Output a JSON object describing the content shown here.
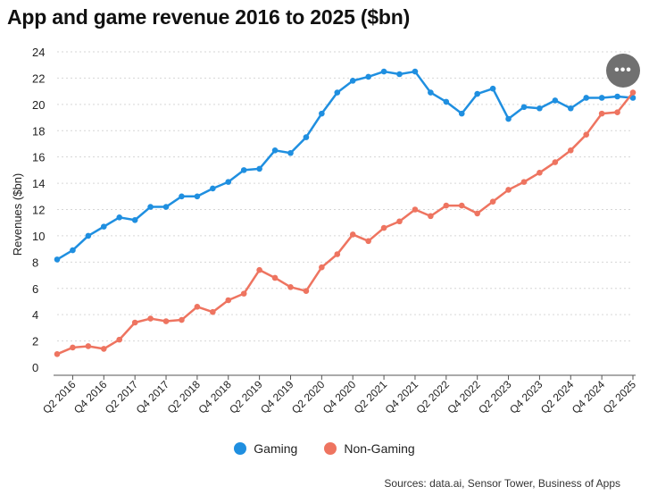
{
  "chart_data": {
    "type": "line",
    "title": "App and game revenue 2016 to 2025 ($bn)",
    "xlabel": "",
    "ylabel": "Revenues ($bn)",
    "ylim": [
      0,
      24
    ],
    "y_ticks": [
      0,
      2,
      4,
      6,
      8,
      10,
      12,
      14,
      16,
      18,
      20,
      22,
      24
    ],
    "grid": true,
    "legend_position": "bottom-center",
    "tick_labels": [
      "Q2 2016",
      "Q4 2016",
      "Q2 2017",
      "Q4 2017",
      "Q2 2018",
      "Q4 2018",
      "Q2 2019",
      "Q4 2019",
      "Q2 2020",
      "Q4 2020",
      "Q2 2021",
      "Q4 2021",
      "Q2 2022",
      "Q4 2022",
      "Q2 2023",
      "Q4 2023",
      "Q2 2024",
      "Q4 2024",
      "Q2 2025"
    ],
    "categories": [
      "Q1 2016",
      "Q2 2016",
      "Q3 2016",
      "Q4 2016",
      "Q1 2017",
      "Q2 2017",
      "Q3 2017",
      "Q4 2017",
      "Q1 2018",
      "Q2 2018",
      "Q3 2018",
      "Q4 2018",
      "Q1 2019",
      "Q2 2019",
      "Q3 2019",
      "Q4 2019",
      "Q1 2020",
      "Q2 2020",
      "Q3 2020",
      "Q4 2020",
      "Q1 2021",
      "Q2 2021",
      "Q3 2021",
      "Q4 2021",
      "Q1 2022",
      "Q2 2022",
      "Q3 2022",
      "Q4 2022",
      "Q1 2023",
      "Q2 2023",
      "Q3 2023",
      "Q4 2023",
      "Q1 2024",
      "Q2 2024",
      "Q3 2024",
      "Q4 2024",
      "Q1 2025",
      "Q2 2025"
    ],
    "series": [
      {
        "name": "Gaming",
        "color": "#1f8fe0",
        "values": [
          8.2,
          8.9,
          10.0,
          10.7,
          11.4,
          11.2,
          12.2,
          12.2,
          13.0,
          13.0,
          13.6,
          14.1,
          15.0,
          15.1,
          16.5,
          16.3,
          17.5,
          19.3,
          20.9,
          21.8,
          22.1,
          22.5,
          22.3,
          22.5,
          20.9,
          20.2,
          19.3,
          20.8,
          21.2,
          18.9,
          19.8,
          19.7,
          20.3,
          19.7,
          20.5,
          20.5,
          20.6,
          20.5
        ]
      },
      {
        "name": "Non-Gaming",
        "color": "#ee7460",
        "values": [
          1.0,
          1.5,
          1.6,
          1.4,
          2.1,
          3.4,
          3.7,
          3.5,
          3.6,
          4.6,
          4.2,
          5.1,
          5.6,
          7.4,
          6.8,
          6.1,
          5.8,
          7.6,
          8.6,
          10.1,
          9.6,
          10.6,
          11.1,
          12.0,
          11.5,
          12.3,
          12.3,
          11.7,
          12.6,
          13.5,
          14.1,
          14.8,
          15.6,
          16.5,
          17.7,
          19.3,
          19.4,
          20.9
        ]
      }
    ]
  },
  "legend": {
    "gaming_label": "Gaming",
    "non_gaming_label": "Non-Gaming"
  },
  "source": "Sources: data.ai, Sensor Tower, Business of Apps",
  "more_button": {
    "label": "•••",
    "icon": "more-horizontal-icon"
  }
}
